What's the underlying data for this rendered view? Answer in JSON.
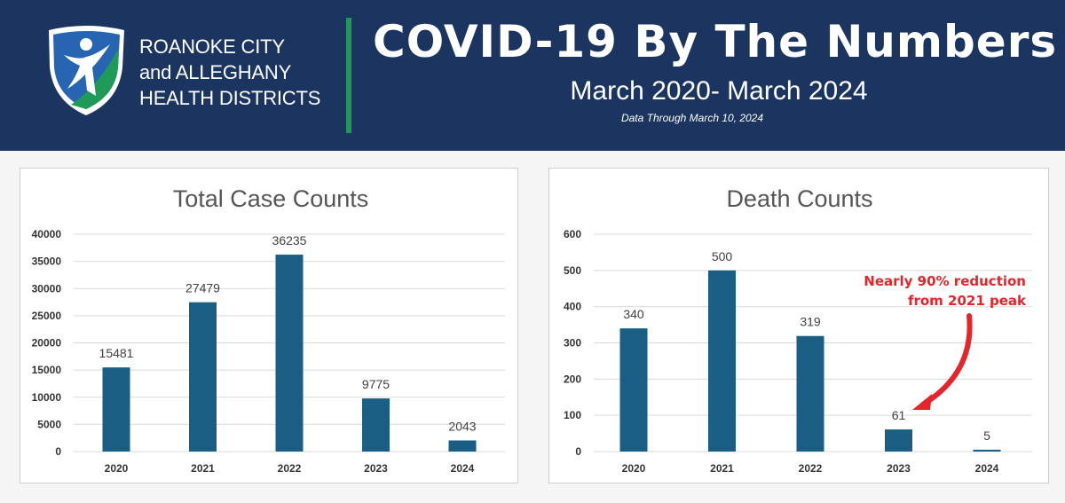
{
  "header": {
    "org_line1": "ROANOKE CITY",
    "org_line2": "and ALLEGHANY",
    "org_line3": "HEALTH DISTRICTS",
    "title": "COVID-19 By The Numbers",
    "subtitle": "March 2020- March 2024",
    "data_through": "Data Through March 10, 2024"
  },
  "colors": {
    "header_bg": "#1b3560",
    "divider": "#1f9a57",
    "bar": "#1a5e84",
    "annotation": "#e4262a",
    "logo_blue": "#2765b3",
    "logo_green": "#1f9a57"
  },
  "annotation": {
    "line1": "Nearly 90% reduction",
    "line2": "from 2021 peak",
    "icon": "curved-arrow-icon"
  },
  "chart_data": [
    {
      "type": "bar",
      "title": "Total Case Counts",
      "categories": [
        "2020",
        "2021",
        "2022",
        "2023",
        "2024"
      ],
      "values": [
        15481,
        27479,
        36235,
        9775,
        2043
      ],
      "yticks": [
        "0",
        "5000",
        "10000",
        "15000",
        "20000",
        "25000",
        "30000",
        "35000",
        "40000"
      ],
      "ylim": [
        0,
        40000
      ],
      "grid": true,
      "data_labels": true
    },
    {
      "type": "bar",
      "title": "Death Counts",
      "categories": [
        "2020",
        "2021",
        "2022",
        "2023",
        "2024"
      ],
      "values": [
        340,
        500,
        319,
        61,
        5
      ],
      "yticks": [
        "0",
        "100",
        "200",
        "300",
        "400",
        "500",
        "600"
      ],
      "ylim": [
        0,
        600
      ],
      "grid": true,
      "data_labels": true
    }
  ]
}
